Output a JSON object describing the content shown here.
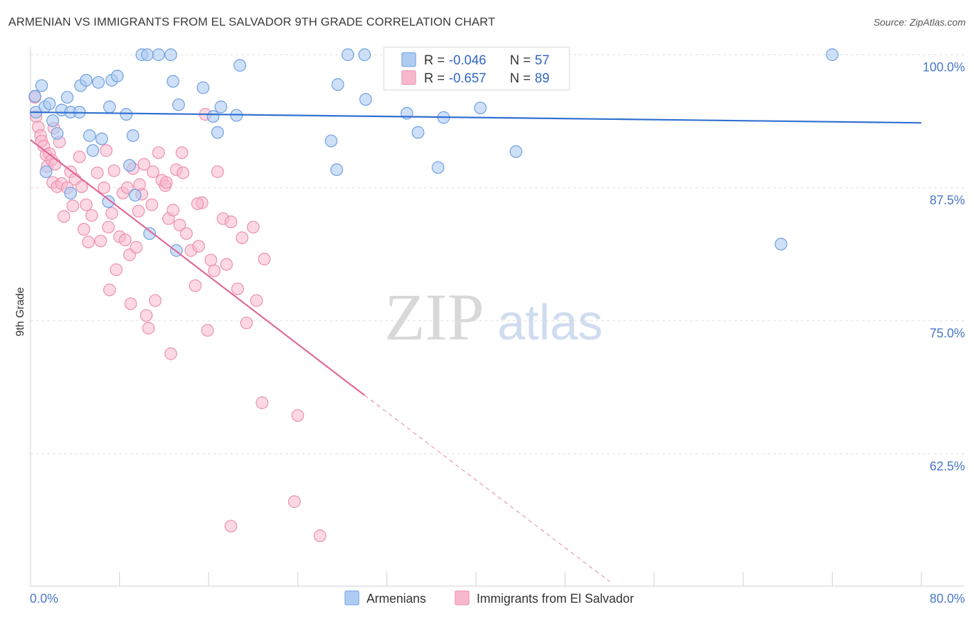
{
  "title": "ARMENIAN VS IMMIGRANTS FROM EL SALVADOR 9TH GRADE CORRELATION CHART",
  "source": "Source: ZipAtlas.com",
  "watermark": {
    "zip": "ZIP",
    "atlas": "atlas"
  },
  "colors": {
    "armenian_fill": "#aecbf2",
    "armenian_stroke": "#6f9fe0",
    "armenian_line": "#2f6fcf",
    "salvador_fill": "#f7b8cc",
    "salvador_stroke": "#ec8fb0",
    "salvador_line": "#e0679a",
    "axis_label": "#4a78c8",
    "grid": "#dddddd"
  },
  "legend": {
    "r_label": "R =",
    "n_label": "N =",
    "armenian": {
      "r": "-0.046",
      "n": "57"
    },
    "salvador": {
      "r": "-0.657",
      "n": "89"
    }
  },
  "bottom_legend": {
    "armenian": "Armenians",
    "salvador": "Immigrants from El Salvador"
  },
  "chart_data": {
    "type": "scatter",
    "xlabel": "",
    "ylabel": "9th Grade",
    "xlim": [
      0,
      80
    ],
    "ylim": [
      50.5,
      101.5
    ],
    "x_tick_labels": [
      "0.0%",
      "80.0%"
    ],
    "y_ticks": [
      62.5,
      75.0,
      87.5,
      100.0
    ],
    "y_tick_labels": [
      "62.5%",
      "75.0%",
      "87.5%",
      "100.0%"
    ],
    "grid": true,
    "legend_position": "top-center",
    "series": [
      {
        "name": "Armenians",
        "trend": {
          "x": [
            0,
            80
          ],
          "y": [
            94.6,
            93.6
          ]
        },
        "points": [
          [
            0.4,
            96.1
          ],
          [
            0.5,
            94.6
          ],
          [
            1.0,
            97.1
          ],
          [
            1.3,
            95.1
          ],
          [
            1.7,
            95.4
          ],
          [
            2.4,
            92.6
          ],
          [
            2.8,
            94.8
          ],
          [
            3.3,
            96.0
          ],
          [
            3.6,
            94.6
          ],
          [
            4.4,
            94.6
          ],
          [
            4.5,
            97.1
          ],
          [
            5.0,
            97.6
          ],
          [
            5.3,
            92.4
          ],
          [
            6.1,
            97.4
          ],
          [
            6.4,
            92.1
          ],
          [
            7.1,
            95.1
          ],
          [
            7.3,
            97.6
          ],
          [
            7.8,
            98.0
          ],
          [
            8.6,
            94.4
          ],
          [
            8.9,
            89.6
          ],
          [
            9.2,
            92.4
          ],
          [
            10.0,
            100.0
          ],
          [
            10.5,
            100.0
          ],
          [
            11.5,
            100.0
          ],
          [
            12.6,
            100.0
          ],
          [
            12.8,
            97.5
          ],
          [
            13.3,
            95.3
          ],
          [
            15.5,
            96.9
          ],
          [
            16.4,
            94.2
          ],
          [
            16.8,
            92.7
          ],
          [
            17.1,
            95.1
          ],
          [
            18.5,
            94.3
          ],
          [
            18.8,
            99.0
          ],
          [
            27.0,
            91.9
          ],
          [
            27.5,
            89.2
          ],
          [
            27.6,
            97.2
          ],
          [
            28.5,
            100.0
          ],
          [
            30.0,
            100.0
          ],
          [
            30.1,
            95.8
          ],
          [
            32.8,
            100.0
          ],
          [
            33.8,
            94.5
          ],
          [
            34.8,
            92.7
          ],
          [
            36.6,
            89.4
          ],
          [
            37.1,
            94.1
          ],
          [
            37.7,
            98.0
          ],
          [
            40.4,
            95.0
          ],
          [
            43.6,
            90.9
          ],
          [
            67.4,
            82.2
          ],
          [
            72.0,
            100.0
          ],
          [
            1.4,
            89.0
          ],
          [
            3.6,
            87.0
          ],
          [
            7.0,
            86.2
          ],
          [
            9.4,
            86.8
          ],
          [
            10.7,
            83.2
          ],
          [
            13.1,
            81.6
          ],
          [
            5.6,
            91.0
          ],
          [
            2.0,
            93.8
          ]
        ]
      },
      {
        "name": "Immigrants from El Salvador",
        "trend": {
          "x": [
            0,
            30
          ],
          "y": [
            92.0,
            68.0
          ]
        },
        "trend_dashed": {
          "x": [
            30,
            52
          ],
          "y": [
            68.0,
            50.5
          ]
        },
        "points": [
          [
            0.4,
            96.0
          ],
          [
            0.5,
            94.2
          ],
          [
            0.7,
            93.2
          ],
          [
            0.9,
            92.4
          ],
          [
            1.0,
            91.9
          ],
          [
            1.2,
            91.4
          ],
          [
            1.4,
            90.6
          ],
          [
            1.5,
            89.5
          ],
          [
            1.7,
            90.7
          ],
          [
            1.9,
            90.1
          ],
          [
            2.0,
            88.0
          ],
          [
            2.2,
            89.7
          ],
          [
            2.4,
            87.6
          ],
          [
            2.6,
            91.8
          ],
          [
            2.8,
            87.9
          ],
          [
            3.0,
            84.8
          ],
          [
            3.3,
            87.5
          ],
          [
            3.6,
            89.0
          ],
          [
            3.8,
            85.8
          ],
          [
            4.0,
            88.3
          ],
          [
            4.4,
            90.4
          ],
          [
            4.6,
            87.6
          ],
          [
            4.8,
            83.6
          ],
          [
            5.0,
            85.9
          ],
          [
            5.2,
            82.4
          ],
          [
            5.5,
            84.9
          ],
          [
            6.0,
            88.9
          ],
          [
            6.3,
            82.5
          ],
          [
            6.6,
            87.5
          ],
          [
            6.8,
            91.0
          ],
          [
            7.0,
            83.8
          ],
          [
            7.1,
            77.9
          ],
          [
            7.3,
            85.1
          ],
          [
            7.5,
            89.1
          ],
          [
            7.7,
            79.8
          ],
          [
            8.0,
            82.9
          ],
          [
            8.3,
            87.0
          ],
          [
            8.5,
            82.6
          ],
          [
            8.7,
            87.5
          ],
          [
            8.9,
            81.2
          ],
          [
            9.0,
            76.6
          ],
          [
            9.2,
            89.3
          ],
          [
            9.5,
            81.9
          ],
          [
            9.7,
            85.3
          ],
          [
            10.0,
            86.9
          ],
          [
            10.2,
            89.7
          ],
          [
            10.4,
            75.5
          ],
          [
            10.6,
            74.3
          ],
          [
            10.9,
            85.9
          ],
          [
            11.2,
            76.9
          ],
          [
            11.5,
            90.8
          ],
          [
            11.8,
            88.2
          ],
          [
            12.1,
            87.7
          ],
          [
            12.4,
            84.6
          ],
          [
            12.6,
            71.9
          ],
          [
            12.8,
            85.4
          ],
          [
            13.1,
            89.2
          ],
          [
            13.4,
            84.0
          ],
          [
            13.7,
            88.9
          ],
          [
            14.0,
            83.2
          ],
          [
            14.4,
            81.6
          ],
          [
            14.8,
            78.3
          ],
          [
            15.1,
            82.0
          ],
          [
            15.4,
            86.1
          ],
          [
            15.7,
            94.4
          ],
          [
            15.9,
            74.1
          ],
          [
            16.2,
            80.7
          ],
          [
            16.5,
            79.7
          ],
          [
            16.8,
            89.0
          ],
          [
            17.3,
            84.6
          ],
          [
            17.6,
            80.3
          ],
          [
            18.0,
            84.3
          ],
          [
            18.6,
            78.0
          ],
          [
            19.0,
            82.8
          ],
          [
            19.4,
            74.8
          ],
          [
            20.0,
            83.8
          ],
          [
            20.3,
            76.9
          ],
          [
            21.0,
            80.8
          ],
          [
            20.8,
            67.3
          ],
          [
            23.7,
            58.0
          ],
          [
            24.0,
            66.1
          ],
          [
            26.0,
            54.8
          ],
          [
            18.0,
            55.7
          ],
          [
            15.0,
            86.0
          ],
          [
            9.8,
            87.8
          ],
          [
            12.2,
            88.0
          ],
          [
            13.6,
            90.8
          ],
          [
            11.0,
            89.0
          ],
          [
            2.1,
            93.1
          ]
        ]
      }
    ]
  }
}
